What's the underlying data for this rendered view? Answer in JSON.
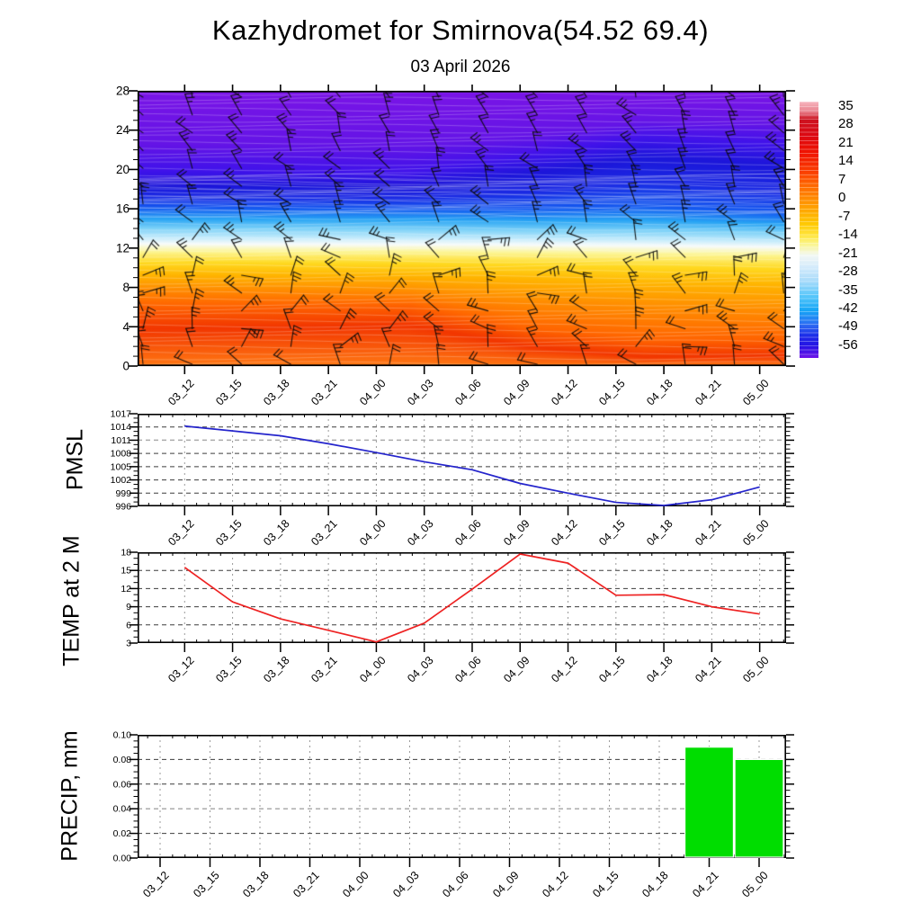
{
  "header": {
    "title": "Kazhydromet for Smirnova(54.52 69.4)",
    "subtitle": "03 April 2026"
  },
  "time_labels": [
    "03_12",
    "03_15",
    "03_18",
    "03_21",
    "04_00",
    "04_03",
    "04_06",
    "04_09",
    "04_12",
    "04_15",
    "04_18",
    "04_21",
    "05_00"
  ],
  "chart_data": [
    {
      "id": "cross_section",
      "type": "heatmap",
      "title": "Upper-air temperature cross-section with wind barbs",
      "x": [
        "03_12",
        "03_15",
        "03_18",
        "03_21",
        "04_00",
        "04_03",
        "04_06",
        "04_09",
        "04_12",
        "04_15",
        "04_18",
        "04_21",
        "05_00"
      ],
      "y_ticks": [
        0,
        4,
        8,
        12,
        16,
        20,
        24,
        28
      ],
      "ylim": [
        0,
        28
      ],
      "grid": false,
      "legend_position": "right",
      "colorbar": {
        "tick_labels": [
          "35",
          "28",
          "21",
          "14",
          "7",
          "0",
          "-7",
          "-14",
          "-21",
          "-28",
          "-35",
          "-42",
          "-49",
          "-56"
        ],
        "stops": [
          [
            0,
            "#f7b6c0"
          ],
          [
            0.04,
            "#e87e8a"
          ],
          [
            0.068,
            "#cc1320"
          ],
          [
            0.135,
            "#dd0812"
          ],
          [
            0.2,
            "#f01400"
          ],
          [
            0.27,
            "#fa3c00"
          ],
          [
            0.335,
            "#ff6e00"
          ],
          [
            0.405,
            "#ff9c00"
          ],
          [
            0.475,
            "#ffc800"
          ],
          [
            0.52,
            "#ffe43c"
          ],
          [
            0.555,
            "#fbf58c"
          ],
          [
            0.6,
            "#f2f8f4"
          ],
          [
            0.645,
            "#d4ebfb"
          ],
          [
            0.7,
            "#a8dbfa"
          ],
          [
            0.76,
            "#55c6fa"
          ],
          [
            0.815,
            "#15a5f6"
          ],
          [
            0.87,
            "#2e6cf2"
          ],
          [
            0.915,
            "#1c2ae8"
          ],
          [
            0.955,
            "#2812e4"
          ],
          [
            1,
            "#7014e8"
          ]
        ]
      },
      "field_palette": [
        "#7a14e6",
        "#6414e6",
        "#4012ea",
        "#1c16da",
        "#1a2ae4",
        "#145af0",
        "#28a4f4",
        "#7ed2f8",
        "#c9edfc",
        "#f7fbfa",
        "#fdf592",
        "#ffd920",
        "#ffb400",
        "#ff8c00",
        "#ff6400",
        "#f23600",
        "#ff7814"
      ],
      "field_columns": [
        {
          "x": 0.0,
          "stops": [
            0,
            0.195,
            0.29,
            0.345,
            0.385,
            0.425,
            0.465,
            0.5,
            0.535,
            0.556,
            0.585,
            0.625,
            0.67,
            0.72,
            0.78,
            0.865,
            1
          ]
        },
        {
          "x": 0.42,
          "stops": [
            0,
            0.195,
            0.295,
            0.35,
            0.39,
            0.43,
            0.468,
            0.503,
            0.537,
            0.558,
            0.586,
            0.628,
            0.672,
            0.728,
            0.778,
            0.852,
            1
          ]
        },
        {
          "x": 0.6,
          "stops": [
            0,
            0.165,
            0.235,
            0.305,
            0.37,
            0.43,
            0.472,
            0.507,
            0.54,
            0.56,
            0.59,
            0.632,
            0.685,
            0.765,
            0.862,
            0.93,
            1
          ]
        },
        {
          "x": 0.78,
          "stops": [
            0,
            0.11,
            0.17,
            0.24,
            0.33,
            0.42,
            0.47,
            0.508,
            0.542,
            0.563,
            0.594,
            0.64,
            0.7,
            0.785,
            0.905,
            0.968,
            1
          ]
        },
        {
          "x": 1.0,
          "stops": [
            0,
            0.12,
            0.195,
            0.275,
            0.37,
            0.445,
            0.485,
            0.515,
            0.548,
            0.568,
            0.598,
            0.645,
            0.705,
            0.8,
            0.9,
            0.962,
            1
          ]
        }
      ]
    },
    {
      "id": "pmsl",
      "type": "line",
      "title": "PMSL",
      "x": [
        "03_12",
        "03_15",
        "03_18",
        "03_21",
        "04_00",
        "04_03",
        "04_06",
        "04_09",
        "04_12",
        "04_15",
        "04_18",
        "04_21",
        "05_00"
      ],
      "values": [
        1014.2,
        1013.1,
        1012.0,
        1010.2,
        1008.2,
        1006.1,
        1004.3,
        1001.2,
        999.0,
        996.9,
        996.2,
        997.5,
        1000.4
      ],
      "ylim": [
        996,
        1017
      ],
      "y_ticks": [
        996,
        999,
        1002,
        1005,
        1008,
        1011,
        1014,
        1017
      ],
      "light_gridlines": [
        1011
      ],
      "color": "#2424cc",
      "grid": true
    },
    {
      "id": "temp2m",
      "type": "line",
      "title": "TEMP at 2 M",
      "x": [
        "03_12",
        "03_15",
        "03_18",
        "03_21",
        "04_00",
        "04_03",
        "04_06",
        "04_09",
        "04_12",
        "04_15",
        "04_18",
        "04_21",
        "05_00"
      ],
      "values": [
        15.5,
        9.8,
        7.0,
        5.1,
        3.2,
        6.3,
        11.9,
        17.7,
        16.2,
        10.9,
        11.0,
        9.0,
        7.8
      ],
      "ylim": [
        3,
        18
      ],
      "y_ticks": [
        3,
        6,
        9,
        12,
        15,
        18
      ],
      "light_gridlines": [],
      "color": "#ee2222",
      "grid": true
    },
    {
      "id": "precip",
      "type": "bar",
      "title": "PRECIP, mm",
      "x": [
        "03_12",
        "03_15",
        "03_18",
        "03_21",
        "04_00",
        "04_03",
        "04_06",
        "04_09",
        "04_12",
        "04_15",
        "04_18",
        "04_21",
        "05_00"
      ],
      "values": [
        0,
        0,
        0,
        0,
        0,
        0,
        0,
        0,
        0,
        0,
        0,
        0.09,
        0.08
      ],
      "ylim": [
        0,
        0.1
      ],
      "y_ticks": [
        "0.00",
        "0.02",
        "0.04",
        "0.06",
        "0.08",
        "0.10"
      ],
      "light_gridlines": [
        0.04
      ],
      "color": "#00dd00",
      "grid": true
    }
  ]
}
